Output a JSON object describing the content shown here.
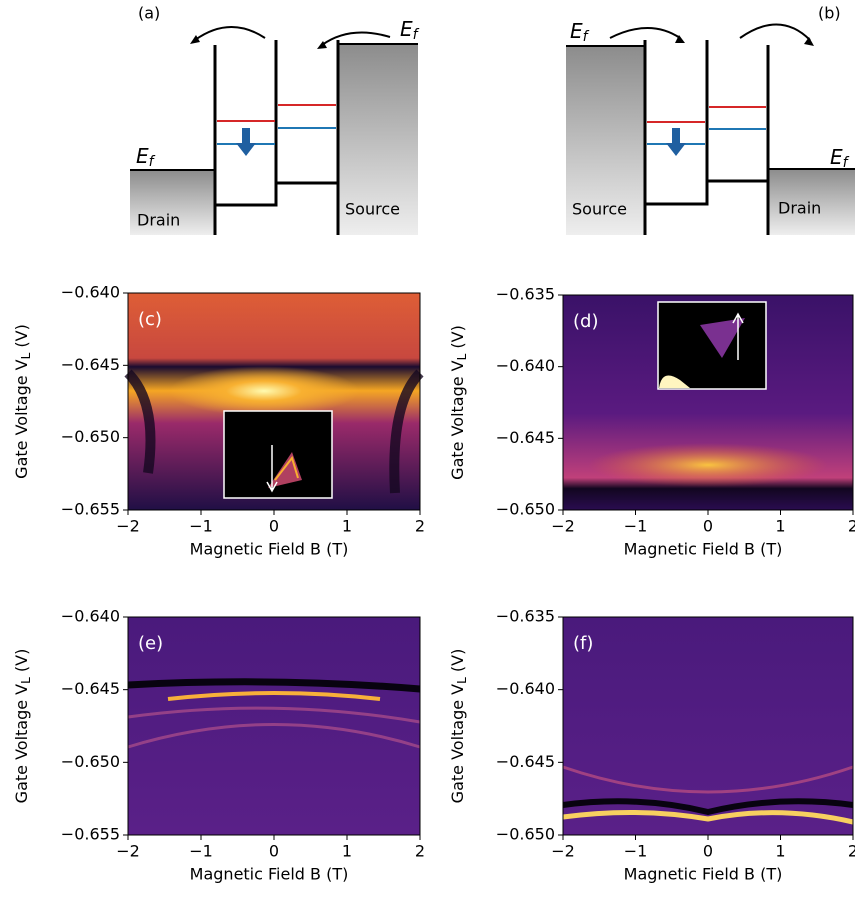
{
  "panel_a": {
    "label": "(a)",
    "drain": "Drain",
    "source": "Source",
    "fermi": "E",
    "fermi_sub": "f"
  },
  "panel_b": {
    "label": "(b)",
    "drain": "Drain",
    "source": "Source",
    "fermi": "E",
    "fermi_sub": "f"
  },
  "plots": [
    {
      "label": "(c)",
      "xlabel": "Magnetic Field B (T)",
      "ylabel": "Gate Voltage V",
      "ylabel_sub": "L",
      "ylabel_unit": " (V)",
      "xlim": [
        -2,
        2
      ],
      "ylim": [
        -0.655,
        -0.64
      ],
      "xticks": [
        {
          "value": -2,
          "label": "−2"
        },
        {
          "value": -1,
          "label": "−1"
        },
        0,
        1,
        2
      ],
      "yticks": [
        {
          "value": -0.64,
          "label": "−0.640"
        },
        {
          "value": -0.645,
          "label": "−0.645"
        },
        {
          "value": -0.65,
          "label": "−0.650"
        },
        {
          "value": -0.655,
          "label": "−0.655"
        }
      ]
    },
    {
      "label": "(d)",
      "xlabel": "Magnetic Field B (T)",
      "ylabel": "Gate Voltage V",
      "ylabel_sub": "L",
      "ylabel_unit": " (V)",
      "xlim": [
        -2,
        2
      ],
      "ylim": [
        -0.65,
        -0.635
      ],
      "xticks": [
        {
          "value": -2,
          "label": "−2"
        },
        {
          "value": -1,
          "label": "−1"
        },
        0,
        1,
        2
      ],
      "yticks": [
        {
          "value": -0.635,
          "label": "−0.635"
        },
        {
          "value": -0.64,
          "label": "−0.640"
        },
        {
          "value": -0.645,
          "label": "−0.645"
        },
        {
          "value": -0.65,
          "label": "−0.650"
        }
      ]
    },
    {
      "label": "(e)",
      "xlabel": "Magnetic Field B (T)",
      "ylabel": "Gate Voltage V",
      "ylabel_sub": "L",
      "ylabel_unit": " (V)",
      "xlim": [
        -2,
        2
      ],
      "ylim": [
        -0.655,
        -0.64
      ],
      "xticks": [
        {
          "value": -2,
          "label": "−2"
        },
        {
          "value": -1,
          "label": "−1"
        },
        0,
        1,
        2
      ],
      "yticks": [
        {
          "value": -0.64,
          "label": "−0.640"
        },
        {
          "value": -0.645,
          "label": "−0.645"
        },
        {
          "value": -0.65,
          "label": "−0.650"
        },
        {
          "value": -0.655,
          "label": "−0.655"
        }
      ]
    },
    {
      "label": "(f)",
      "xlabel": "Magnetic Field B (T)",
      "ylabel": "Gate Voltage V",
      "ylabel_sub": "L",
      "ylabel_unit": " (V)",
      "xlim": [
        -2,
        2
      ],
      "ylim": [
        -0.65,
        -0.635
      ],
      "xticks": [
        {
          "value": -2,
          "label": "−2"
        },
        {
          "value": -1,
          "label": "−1"
        },
        0,
        1,
        2
      ],
      "yticks": [
        {
          "value": -0.635,
          "label": "−0.635"
        },
        {
          "value": -0.64,
          "label": "−0.640"
        },
        {
          "value": -0.645,
          "label": "−0.645"
        },
        {
          "value": -0.65,
          "label": "−0.650"
        }
      ]
    }
  ]
}
